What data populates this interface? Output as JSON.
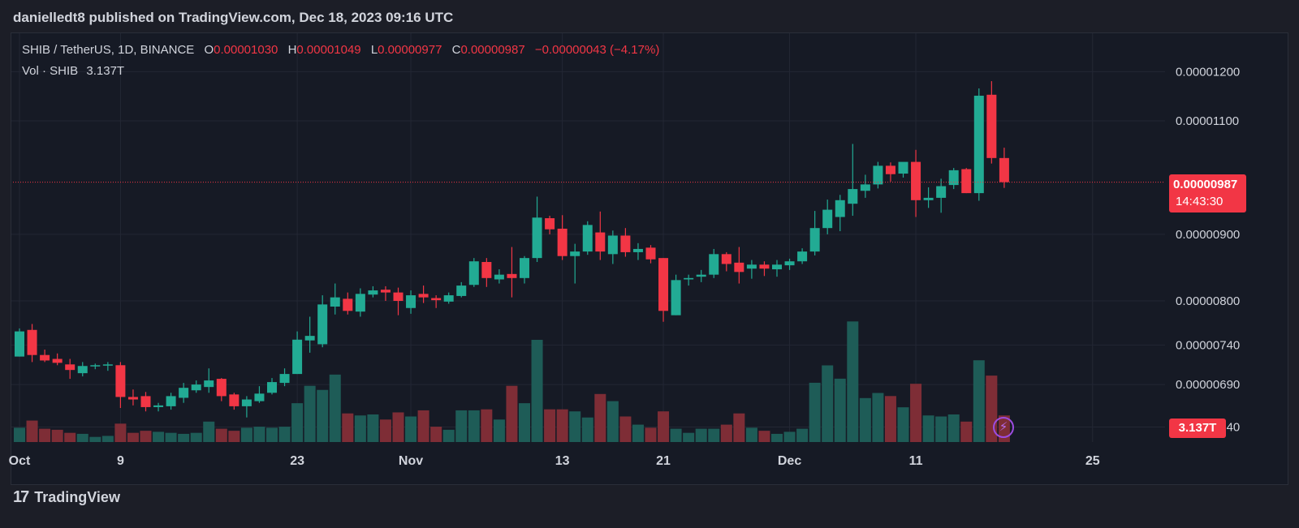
{
  "header": {
    "published_text": "danielledt8 published on TradingView.com, Dec 18, 2023 09:16 UTC"
  },
  "legend": {
    "symbol": "SHIB / TetherUS, 1D, BINANCE",
    "open_label": "O",
    "open": "0.00001030",
    "high_label": "H",
    "high": "0.00001049",
    "low_label": "L",
    "low": "0.00000977",
    "close_label": "C",
    "close": "0.00000987",
    "change": "−0.00000043 (−4.17%)",
    "volume_label": "Vol · SHIB",
    "volume": "3.137T"
  },
  "price_tag": {
    "price": "0.00000987",
    "countdown": "14:43:30"
  },
  "volume_tag": "3.137T",
  "footer": {
    "brand": "TradingView",
    "logo_mark": "17"
  },
  "colors": {
    "up": "#22ab94",
    "down": "#f23645",
    "vol_up": "#1e5c57",
    "vol_down": "#7e2d36",
    "grid": "#232734",
    "axis_text": "#d1d4dc"
  },
  "chart_data": {
    "type": "candlestick",
    "symbol": "SHIB / TetherUS",
    "interval": "1D",
    "exchange": "BINANCE",
    "y_scale": "log",
    "y_ticks": [
      "0.00001200",
      "0.00001100",
      "0.00000900",
      "0.00000800",
      "0.00000740",
      "0.00000690",
      "0.00000640"
    ],
    "x_ticks": [
      {
        "label": "Oct",
        "date": "2023-10-01"
      },
      {
        "label": "9",
        "date": "2023-10-09"
      },
      {
        "label": "23",
        "date": "2023-10-23"
      },
      {
        "label": "Nov",
        "date": "2023-11-01"
      },
      {
        "label": "13",
        "date": "2023-11-13"
      },
      {
        "label": "21",
        "date": "2023-11-21"
      },
      {
        "label": "Dec",
        "date": "2023-12-01"
      },
      {
        "label": "11",
        "date": "2023-12-11"
      },
      {
        "label": "25",
        "date": "2023-12-25"
      }
    ],
    "grid": true,
    "current_price_line": 9.87e-06,
    "candles": [
      {
        "date": "2023-10-01",
        "o": 7.25e-06,
        "h": 7.62e-06,
        "l": 7.25e-06,
        "c": 7.58e-06,
        "v": 0.14
      },
      {
        "date": "2023-10-02",
        "o": 7.6e-06,
        "h": 7.68e-06,
        "l": 7.18e-06,
        "c": 7.27e-06,
        "v": 0.21
      },
      {
        "date": "2023-10-03",
        "o": 7.27e-06,
        "h": 7.34e-06,
        "l": 7.18e-06,
        "c": 7.2e-06,
        "v": 0.13
      },
      {
        "date": "2023-10-04",
        "o": 7.22e-06,
        "h": 7.29e-06,
        "l": 7.14e-06,
        "c": 7.17e-06,
        "v": 0.12
      },
      {
        "date": "2023-10-05",
        "o": 7.15e-06,
        "h": 7.22e-06,
        "l": 6.97e-06,
        "c": 7.08e-06,
        "v": 0.09
      },
      {
        "date": "2023-10-06",
        "o": 7.04e-06,
        "h": 7.18e-06,
        "l": 7e-06,
        "c": 7.13e-06,
        "v": 0.08
      },
      {
        "date": "2023-10-07",
        "o": 7.13e-06,
        "h": 7.16e-06,
        "l": 7.09e-06,
        "c": 7.14e-06,
        "v": 0.05
      },
      {
        "date": "2023-10-08",
        "o": 7.14e-06,
        "h": 7.18e-06,
        "l": 7.07e-06,
        "c": 7.15e-06,
        "v": 0.06
      },
      {
        "date": "2023-10-09",
        "o": 7.14e-06,
        "h": 7.18e-06,
        "l": 6.62e-06,
        "c": 6.75e-06,
        "v": 0.18
      },
      {
        "date": "2023-10-10",
        "o": 6.75e-06,
        "h": 6.84e-06,
        "l": 6.65e-06,
        "c": 6.72e-06,
        "v": 0.09
      },
      {
        "date": "2023-10-11",
        "o": 6.76e-06,
        "h": 6.81e-06,
        "l": 6.58e-06,
        "c": 6.63e-06,
        "v": 0.11
      },
      {
        "date": "2023-10-12",
        "o": 6.63e-06,
        "h": 6.68e-06,
        "l": 6.58e-06,
        "c": 6.65e-06,
        "v": 0.1
      },
      {
        "date": "2023-10-13",
        "o": 6.64e-06,
        "h": 6.8e-06,
        "l": 6.6e-06,
        "c": 6.76e-06,
        "v": 0.09
      },
      {
        "date": "2023-10-14",
        "o": 6.74e-06,
        "h": 6.92e-06,
        "l": 6.68e-06,
        "c": 6.86e-06,
        "v": 0.08
      },
      {
        "date": "2023-10-15",
        "o": 6.83e-06,
        "h": 6.95e-06,
        "l": 6.8e-06,
        "c": 6.9e-06,
        "v": 0.09
      },
      {
        "date": "2023-10-16",
        "o": 6.87e-06,
        "h": 7.1e-06,
        "l": 6.8e-06,
        "c": 6.95e-06,
        "v": 0.2
      },
      {
        "date": "2023-10-17",
        "o": 6.97e-06,
        "h": 6.98e-06,
        "l": 6.7e-06,
        "c": 6.76e-06,
        "v": 0.13
      },
      {
        "date": "2023-10-18",
        "o": 6.78e-06,
        "h": 6.8e-06,
        "l": 6.6e-06,
        "c": 6.64e-06,
        "v": 0.11
      },
      {
        "date": "2023-10-19",
        "o": 6.64e-06,
        "h": 6.76e-06,
        "l": 6.51e-06,
        "c": 6.72e-06,
        "v": 0.14
      },
      {
        "date": "2023-10-20",
        "o": 6.7e-06,
        "h": 6.88e-06,
        "l": 6.68e-06,
        "c": 6.79e-06,
        "v": 0.15
      },
      {
        "date": "2023-10-21",
        "o": 6.8e-06,
        "h": 6.98e-06,
        "l": 6.78e-06,
        "c": 6.93e-06,
        "v": 0.14
      },
      {
        "date": "2023-10-22",
        "o": 6.92e-06,
        "h": 7.1e-06,
        "l": 6.88e-06,
        "c": 7.03e-06,
        "v": 0.15
      },
      {
        "date": "2023-10-23",
        "o": 7.03e-06,
        "h": 7.58e-06,
        "l": 7.03e-06,
        "c": 7.47e-06,
        "v": 0.38
      },
      {
        "date": "2023-10-24",
        "o": 7.46e-06,
        "h": 7.78e-06,
        "l": 7.3e-06,
        "c": 7.52e-06,
        "v": 0.55
      },
      {
        "date": "2023-10-25",
        "o": 7.41e-06,
        "h": 8.08e-06,
        "l": 7.37e-06,
        "c": 7.95e-06,
        "v": 0.51
      },
      {
        "date": "2023-10-26",
        "o": 7.92e-06,
        "h": 8.25e-06,
        "l": 7.81e-06,
        "c": 8.05e-06,
        "v": 0.66
      },
      {
        "date": "2023-10-27",
        "o": 8.03e-06,
        "h": 8.12e-06,
        "l": 7.81e-06,
        "c": 7.86e-06,
        "v": 0.28
      },
      {
        "date": "2023-10-28",
        "o": 7.85e-06,
        "h": 8.18e-06,
        "l": 7.78e-06,
        "c": 8.1e-06,
        "v": 0.26
      },
      {
        "date": "2023-10-29",
        "o": 8.09e-06,
        "h": 8.21e-06,
        "l": 8.05e-06,
        "c": 8.15e-06,
        "v": 0.27
      },
      {
        "date": "2023-10-30",
        "o": 8.16e-06,
        "h": 8.21e-06,
        "l": 8e-06,
        "c": 8.12e-06,
        "v": 0.22
      },
      {
        "date": "2023-10-31",
        "o": 8.12e-06,
        "h": 8.19e-06,
        "l": 7.8e-06,
        "c": 8e-06,
        "v": 0.29
      },
      {
        "date": "2023-11-01",
        "o": 7.9e-06,
        "h": 8.15e-06,
        "l": 7.82e-06,
        "c": 8.08e-06,
        "v": 0.25
      },
      {
        "date": "2023-11-02",
        "o": 8.1e-06,
        "h": 8.22e-06,
        "l": 7.97e-06,
        "c": 8.05e-06,
        "v": 0.31
      },
      {
        "date": "2023-11-03",
        "o": 8.04e-06,
        "h": 8.08e-06,
        "l": 7.9e-06,
        "c": 8.01e-06,
        "v": 0.15
      },
      {
        "date": "2023-11-04",
        "o": 7.99e-06,
        "h": 8.12e-06,
        "l": 7.96e-06,
        "c": 8.08e-06,
        "v": 0.12
      },
      {
        "date": "2023-11-05",
        "o": 8.07e-06,
        "h": 8.27e-06,
        "l": 8.05e-06,
        "c": 8.22e-06,
        "v": 0.31
      },
      {
        "date": "2023-11-06",
        "o": 8.23e-06,
        "h": 8.63e-06,
        "l": 8.2e-06,
        "c": 8.58e-06,
        "v": 0.31
      },
      {
        "date": "2023-11-07",
        "o": 8.57e-06,
        "h": 8.63e-06,
        "l": 8.2e-06,
        "c": 8.33e-06,
        "v": 0.32
      },
      {
        "date": "2023-11-08",
        "o": 8.31e-06,
        "h": 8.46e-06,
        "l": 8.25e-06,
        "c": 8.38e-06,
        "v": 0.22
      },
      {
        "date": "2023-11-09",
        "o": 8.39e-06,
        "h": 8.8e-06,
        "l": 8.05e-06,
        "c": 8.33e-06,
        "v": 0.55
      },
      {
        "date": "2023-11-10",
        "o": 8.33e-06,
        "h": 8.66e-06,
        "l": 8.25e-06,
        "c": 8.63e-06,
        "v": 0.38
      },
      {
        "date": "2023-11-11",
        "o": 8.63e-06,
        "h": 9.62e-06,
        "l": 8.57e-06,
        "c": 9.27e-06,
        "v": 1.0
      },
      {
        "date": "2023-11-12",
        "o": 9.26e-06,
        "h": 9.3e-06,
        "l": 9e-06,
        "c": 9.08e-06,
        "v": 0.32
      },
      {
        "date": "2023-11-13",
        "o": 9.09e-06,
        "h": 9.31e-06,
        "l": 8.6e-06,
        "c": 8.66e-06,
        "v": 0.32
      },
      {
        "date": "2023-11-14",
        "o": 8.66e-06,
        "h": 8.85e-06,
        "l": 8.25e-06,
        "c": 8.73e-06,
        "v": 0.3
      },
      {
        "date": "2023-11-15",
        "o": 8.73e-06,
        "h": 9.21e-06,
        "l": 8.68e-06,
        "c": 9.15e-06,
        "v": 0.24
      },
      {
        "date": "2023-11-16",
        "o": 9.03e-06,
        "h": 9.37e-06,
        "l": 8.6e-06,
        "c": 8.73e-06,
        "v": 0.47
      },
      {
        "date": "2023-11-17",
        "o": 8.69e-06,
        "h": 9.06e-06,
        "l": 8.54e-06,
        "c": 8.98e-06,
        "v": 0.4
      },
      {
        "date": "2023-11-18",
        "o": 8.98e-06,
        "h": 9.1e-06,
        "l": 8.65e-06,
        "c": 8.72e-06,
        "v": 0.25
      },
      {
        "date": "2023-11-19",
        "o": 8.72e-06,
        "h": 8.86e-06,
        "l": 8.6e-06,
        "c": 8.77e-06,
        "v": 0.17
      },
      {
        "date": "2023-11-20",
        "o": 8.79e-06,
        "h": 8.83e-06,
        "l": 8.55e-06,
        "c": 8.61e-06,
        "v": 0.14
      },
      {
        "date": "2023-11-21",
        "o": 8.63e-06,
        "h": 8.63e-06,
        "l": 7.71e-06,
        "c": 7.86e-06,
        "v": 0.3
      },
      {
        "date": "2023-11-22",
        "o": 7.8e-06,
        "h": 8.38e-06,
        "l": 7.8e-06,
        "c": 8.3e-06,
        "v": 0.13
      },
      {
        "date": "2023-11-23",
        "o": 8.31e-06,
        "h": 8.38e-06,
        "l": 8.22e-06,
        "c": 8.33e-06,
        "v": 0.09
      },
      {
        "date": "2023-11-24",
        "o": 8.35e-06,
        "h": 8.45e-06,
        "l": 8.27e-06,
        "c": 8.38e-06,
        "v": 0.13
      },
      {
        "date": "2023-11-25",
        "o": 8.38e-06,
        "h": 8.77e-06,
        "l": 8.33e-06,
        "c": 8.69e-06,
        "v": 0.13
      },
      {
        "date": "2023-11-26",
        "o": 8.69e-06,
        "h": 8.72e-06,
        "l": 8.43e-06,
        "c": 8.54e-06,
        "v": 0.17
      },
      {
        "date": "2023-11-27",
        "o": 8.56e-06,
        "h": 8.8e-06,
        "l": 8.25e-06,
        "c": 8.42e-06,
        "v": 0.28
      },
      {
        "date": "2023-11-28",
        "o": 8.47e-06,
        "h": 8.6e-06,
        "l": 8.32e-06,
        "c": 8.53e-06,
        "v": 0.14
      },
      {
        "date": "2023-11-29",
        "o": 8.53e-06,
        "h": 8.58e-06,
        "l": 8.36e-06,
        "c": 8.47e-06,
        "v": 0.11
      },
      {
        "date": "2023-11-30",
        "o": 8.46e-06,
        "h": 8.6e-06,
        "l": 8.35e-06,
        "c": 8.53e-06,
        "v": 0.08
      },
      {
        "date": "2023-12-01",
        "o": 8.52e-06,
        "h": 8.62e-06,
        "l": 8.45e-06,
        "c": 8.58e-06,
        "v": 0.1
      },
      {
        "date": "2023-12-02",
        "o": 8.58e-06,
        "h": 8.78e-06,
        "l": 8.54e-06,
        "c": 8.73e-06,
        "v": 0.13
      },
      {
        "date": "2023-12-03",
        "o": 8.73e-06,
        "h": 9.38e-06,
        "l": 8.67e-06,
        "c": 9.1e-06,
        "v": 0.58
      },
      {
        "date": "2023-12-04",
        "o": 9.1e-06,
        "h": 9.57e-06,
        "l": 9e-06,
        "c": 9.4e-06,
        "v": 0.75
      },
      {
        "date": "2023-12-05",
        "o": 9.28e-06,
        "h": 9.65e-06,
        "l": 9.05e-06,
        "c": 9.56e-06,
        "v": 0.62
      },
      {
        "date": "2023-12-06",
        "o": 9.5e-06,
        "h": 1.056e-05,
        "l": 9.3e-06,
        "c": 9.75e-06,
        "v": 1.18
      },
      {
        "date": "2023-12-07",
        "o": 9.72e-06,
        "h": 1e-05,
        "l": 9.6e-06,
        "c": 9.83e-06,
        "v": 0.43
      },
      {
        "date": "2023-12-08",
        "o": 9.83e-06,
        "h": 1.023e-05,
        "l": 9.76e-06,
        "c": 1.016e-05,
        "v": 0.48
      },
      {
        "date": "2023-12-09",
        "o": 1.016e-05,
        "h": 1.022e-05,
        "l": 9.88e-06,
        "c": 1.001e-05,
        "v": 0.45
      },
      {
        "date": "2023-12-10",
        "o": 1.002e-05,
        "h": 1.02e-05,
        "l": 9.95e-06,
        "c": 1.023e-05,
        "v": 0.34
      },
      {
        "date": "2023-12-11",
        "o": 1.023e-05,
        "h": 1.045e-05,
        "l": 9.28e-06,
        "c": 9.56e-06,
        "v": 0.57
      },
      {
        "date": "2023-12-12",
        "o": 9.56e-06,
        "h": 9.78e-06,
        "l": 9.43e-06,
        "c": 9.6e-06,
        "v": 0.26
      },
      {
        "date": "2023-12-13",
        "o": 9.6e-06,
        "h": 9.93e-06,
        "l": 9.35e-06,
        "c": 9.8e-06,
        "v": 0.25
      },
      {
        "date": "2023-12-14",
        "o": 9.82e-06,
        "h": 1.012e-05,
        "l": 9.75e-06,
        "c": 1.008e-05,
        "v": 0.27
      },
      {
        "date": "2023-12-15",
        "o": 1.01e-05,
        "h": 1.012e-05,
        "l": 9.68e-06,
        "c": 9.68e-06,
        "v": 0.2
      },
      {
        "date": "2023-12-16",
        "o": 9.68e-06,
        "h": 1.165e-05,
        "l": 9.55e-06,
        "c": 1.15e-05,
        "v": 0.8
      },
      {
        "date": "2023-12-17",
        "o": 1.152e-05,
        "h": 1.18e-05,
        "l": 1.02e-05,
        "c": 1.03e-05,
        "v": 0.65
      },
      {
        "date": "2023-12-18",
        "o": 1.03e-05,
        "h": 1.049e-05,
        "l": 9.77e-06,
        "c": 9.87e-06,
        "v": 0.26
      }
    ]
  }
}
